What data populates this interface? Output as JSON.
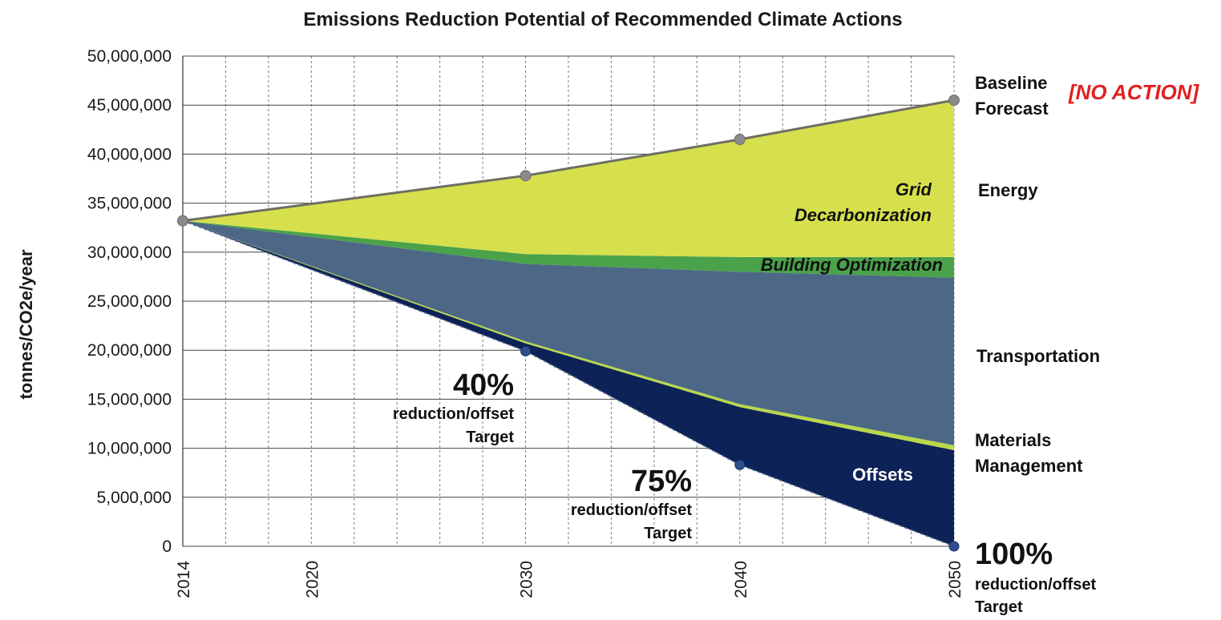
{
  "chart_data": {
    "type": "area",
    "title": "Emissions Reduction Potential of Recommended Climate Actions",
    "ylabel": "tonnes/CO2e/year",
    "xlabel": "",
    "ylim": [
      0,
      50000000
    ],
    "xlim": [
      2014,
      2050
    ],
    "y_ticks": [
      0,
      5000000,
      10000000,
      15000000,
      20000000,
      25000000,
      30000000,
      35000000,
      40000000,
      45000000,
      50000000
    ],
    "y_tick_labels": [
      "0",
      "5,000,000",
      "10,000,000",
      "15,000,000",
      "20,000,000",
      "25,000,000",
      "30,000,000",
      "35,000,000",
      "40,000,000",
      "45,000,000",
      "50,000,000"
    ],
    "x_ticks": [
      2014,
      2020,
      2030,
      2040,
      2050
    ],
    "x_tick_labels": [
      "2014",
      "2020",
      "2030",
      "2040",
      "2050"
    ],
    "x": [
      2014,
      2030,
      2040,
      2050
    ],
    "grid": true,
    "series": [
      {
        "name": "Offsets",
        "values": [
          33200000,
          20700000,
          14200000,
          9800000
        ],
        "color": "#0d2257"
      },
      {
        "name": "Transportation",
        "values": [
          33200000,
          28800000,
          28000000,
          27400000
        ],
        "color": "#4d6886"
      },
      {
        "name": "Building Optimization",
        "values": [
          33200000,
          29800000,
          29500000,
          29500000
        ],
        "color": "#4aa24a"
      },
      {
        "name": "Grid Decarbonization",
        "values": [
          33200000,
          37800000,
          41500000,
          45500000
        ],
        "color": "#d6e04d"
      }
    ],
    "materials_band": {
      "bottom": [
        33200000,
        20700000,
        14200000,
        9800000
      ],
      "top": [
        33200000,
        20900000,
        14500000,
        10300000
      ],
      "color": "#b9d84a"
    },
    "baseline": {
      "name": "Baseline Forecast",
      "x": [
        2014,
        2030,
        2040,
        2050
      ],
      "values": [
        33200000,
        37800000,
        41500000,
        45500000
      ],
      "color": "#6e6e64"
    },
    "targets": {
      "x": [
        2014,
        2030,
        2040,
        2050
      ],
      "values": [
        33200000,
        19900000,
        8300000,
        0
      ],
      "color": "#2d4f8f"
    },
    "annotations": {
      "target_40": {
        "pct": "40%",
        "line1": "reduction/offset",
        "line2": "Target"
      },
      "target_75": {
        "pct": "75%",
        "line1": "reduction/offset",
        "line2": "Target"
      },
      "target_100": {
        "pct": "100%",
        "line1": "reduction/offset",
        "line2": "Target"
      },
      "grid_line1": "Grid",
      "grid_line2": "Decarbonization",
      "building": "Building Optimization",
      "offsets": "Offsets"
    },
    "side_labels": {
      "baseline1": "Baseline",
      "baseline2": "Forecast",
      "no_action": "[NO ACTION]",
      "energy": "Energy",
      "transportation": "Transportation",
      "materials1": "Materials",
      "materials2": "Management"
    }
  }
}
